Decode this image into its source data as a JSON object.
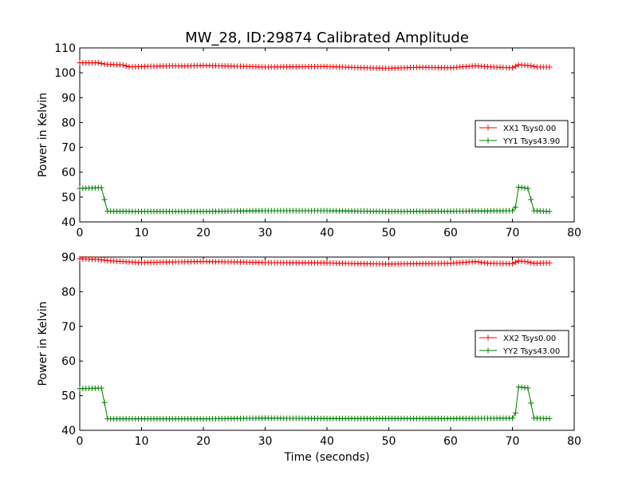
{
  "title": "MW_28, ID:29874 Calibrated Amplitude",
  "colors": {
    "xx": "#ff0000",
    "yy": "#008000",
    "axes": "#000000"
  },
  "chart_data": [
    {
      "type": "line",
      "xlabel": "",
      "ylabel": "Power in Kelvin",
      "xlim": [
        0,
        80
      ],
      "ylim": [
        40,
        110
      ],
      "xticks": [
        0,
        10,
        20,
        30,
        40,
        50,
        60,
        70,
        80
      ],
      "yticks": [
        40,
        50,
        60,
        70,
        80,
        90,
        100,
        110
      ],
      "grid": false,
      "legend_position": "center-right",
      "marker": "+",
      "series": [
        {
          "name": "XX1 Tsys0.00",
          "color": "#ff0000",
          "points": [
            [
              0,
              104
            ],
            [
              3,
              104
            ],
            [
              4,
              103.5
            ],
            [
              7,
              103.1
            ],
            [
              8,
              102.4
            ],
            [
              15,
              102.8
            ],
            [
              17,
              102.7
            ],
            [
              20,
              102.9
            ],
            [
              26,
              102.6
            ],
            [
              30,
              102.3
            ],
            [
              40,
              102.5
            ],
            [
              45,
              102.1
            ],
            [
              50,
              101.8
            ],
            [
              55,
              102.2
            ],
            [
              60,
              102
            ],
            [
              64,
              102.8
            ],
            [
              66,
              102.4
            ],
            [
              70,
              102
            ],
            [
              71,
              103.2
            ],
            [
              73,
              102.8
            ],
            [
              74,
              102.3
            ],
            [
              76,
              102.3
            ]
          ]
        },
        {
          "name": "YY1 Tsys43.90",
          "color": "#008000",
          "points": [
            [
              0,
              53.5
            ],
            [
              3.5,
              53.8
            ],
            [
              4,
              49
            ],
            [
              4.5,
              44.3
            ],
            [
              10,
              44.2
            ],
            [
              20,
              44.2
            ],
            [
              30,
              44.5
            ],
            [
              40,
              44.5
            ],
            [
              50,
              44.2
            ],
            [
              60,
              44.3
            ],
            [
              70,
              44.5
            ],
            [
              70.5,
              46
            ],
            [
              71,
              54
            ],
            [
              72.5,
              53.5
            ],
            [
              73.5,
              44.5
            ],
            [
              76,
              44.2
            ]
          ]
        }
      ]
    },
    {
      "type": "line",
      "xlabel": "Time (seconds)",
      "ylabel": "Power in Kelvin",
      "xlim": [
        0,
        80
      ],
      "ylim": [
        40,
        90
      ],
      "xticks": [
        0,
        10,
        20,
        30,
        40,
        50,
        60,
        70,
        80
      ],
      "yticks": [
        40,
        50,
        60,
        70,
        80,
        90
      ],
      "grid": false,
      "legend_position": "center-right",
      "marker": "+",
      "series": [
        {
          "name": "XX2 Tsys0.00",
          "color": "#ff0000",
          "points": [
            [
              0,
              89.5
            ],
            [
              3,
              89.3
            ],
            [
              5,
              88.9
            ],
            [
              8,
              88.6
            ],
            [
              10,
              88.4
            ],
            [
              15,
              88.6
            ],
            [
              20,
              88.7
            ],
            [
              25,
              88.6
            ],
            [
              30,
              88.4
            ],
            [
              40,
              88.3
            ],
            [
              45,
              88.1
            ],
            [
              50,
              88
            ],
            [
              55,
              88.1
            ],
            [
              60,
              88.2
            ],
            [
              64,
              88.7
            ],
            [
              66,
              88.2
            ],
            [
              70,
              88.1
            ],
            [
              71,
              88.9
            ],
            [
              72.5,
              88.6
            ],
            [
              73.5,
              88.2
            ],
            [
              76,
              88.3
            ]
          ]
        },
        {
          "name": "YY2 Tsys43.00",
          "color": "#008000",
          "points": [
            [
              0,
              52
            ],
            [
              3.5,
              52.2
            ],
            [
              4,
              48
            ],
            [
              4.5,
              43.3
            ],
            [
              10,
              43.3
            ],
            [
              20,
              43.3
            ],
            [
              30,
              43.5
            ],
            [
              40,
              43.4
            ],
            [
              50,
              43.4
            ],
            [
              60,
              43.4
            ],
            [
              70,
              43.5
            ],
            [
              70.5,
              45
            ],
            [
              71,
              52.5
            ],
            [
              72.5,
              52.2
            ],
            [
              73.5,
              43.5
            ],
            [
              76,
              43.4
            ]
          ]
        }
      ]
    }
  ]
}
